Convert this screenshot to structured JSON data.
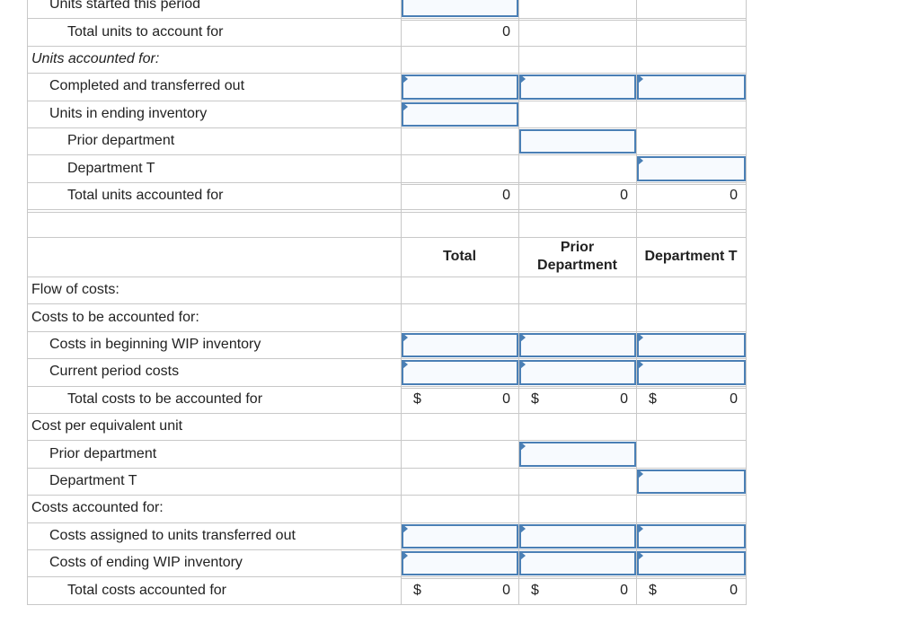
{
  "units_section": [
    {
      "label": "Units started this period"
    },
    {
      "label": "Total units to account for",
      "values": [
        0
      ]
    },
    {
      "label": "Units accounted for:"
    },
    {
      "label": "Completed and transferred out"
    },
    {
      "label": "Units in ending inventory"
    },
    {
      "label": "Prior department"
    },
    {
      "label": "Department T"
    },
    {
      "label": "Total units accounted for",
      "values": [
        0,
        0,
        0
      ]
    }
  ],
  "column_headers": [
    "Total",
    "Prior Department",
    "Department T"
  ],
  "cost_section": [
    {
      "label": "Flow of costs:"
    },
    {
      "label": "Costs to be accounted for:"
    },
    {
      "label": "Costs in beginning WIP inventory"
    },
    {
      "label": "Current period costs"
    },
    {
      "label": "Total costs to be accounted for",
      "currency": [
        "$",
        "$",
        "$"
      ],
      "values": [
        0,
        0,
        0
      ]
    },
    {
      "label": "Cost per equivalent unit"
    },
    {
      "label": "Prior department"
    },
    {
      "label": "Department T"
    },
    {
      "label": "Costs accounted for:"
    },
    {
      "label": "Costs assigned to units transferred out"
    },
    {
      "label": "Costs of ending WIP inventory"
    },
    {
      "label": "Total costs accounted for",
      "currency": [
        "$",
        "$",
        "$"
      ],
      "values": [
        0,
        0,
        0
      ]
    }
  ]
}
